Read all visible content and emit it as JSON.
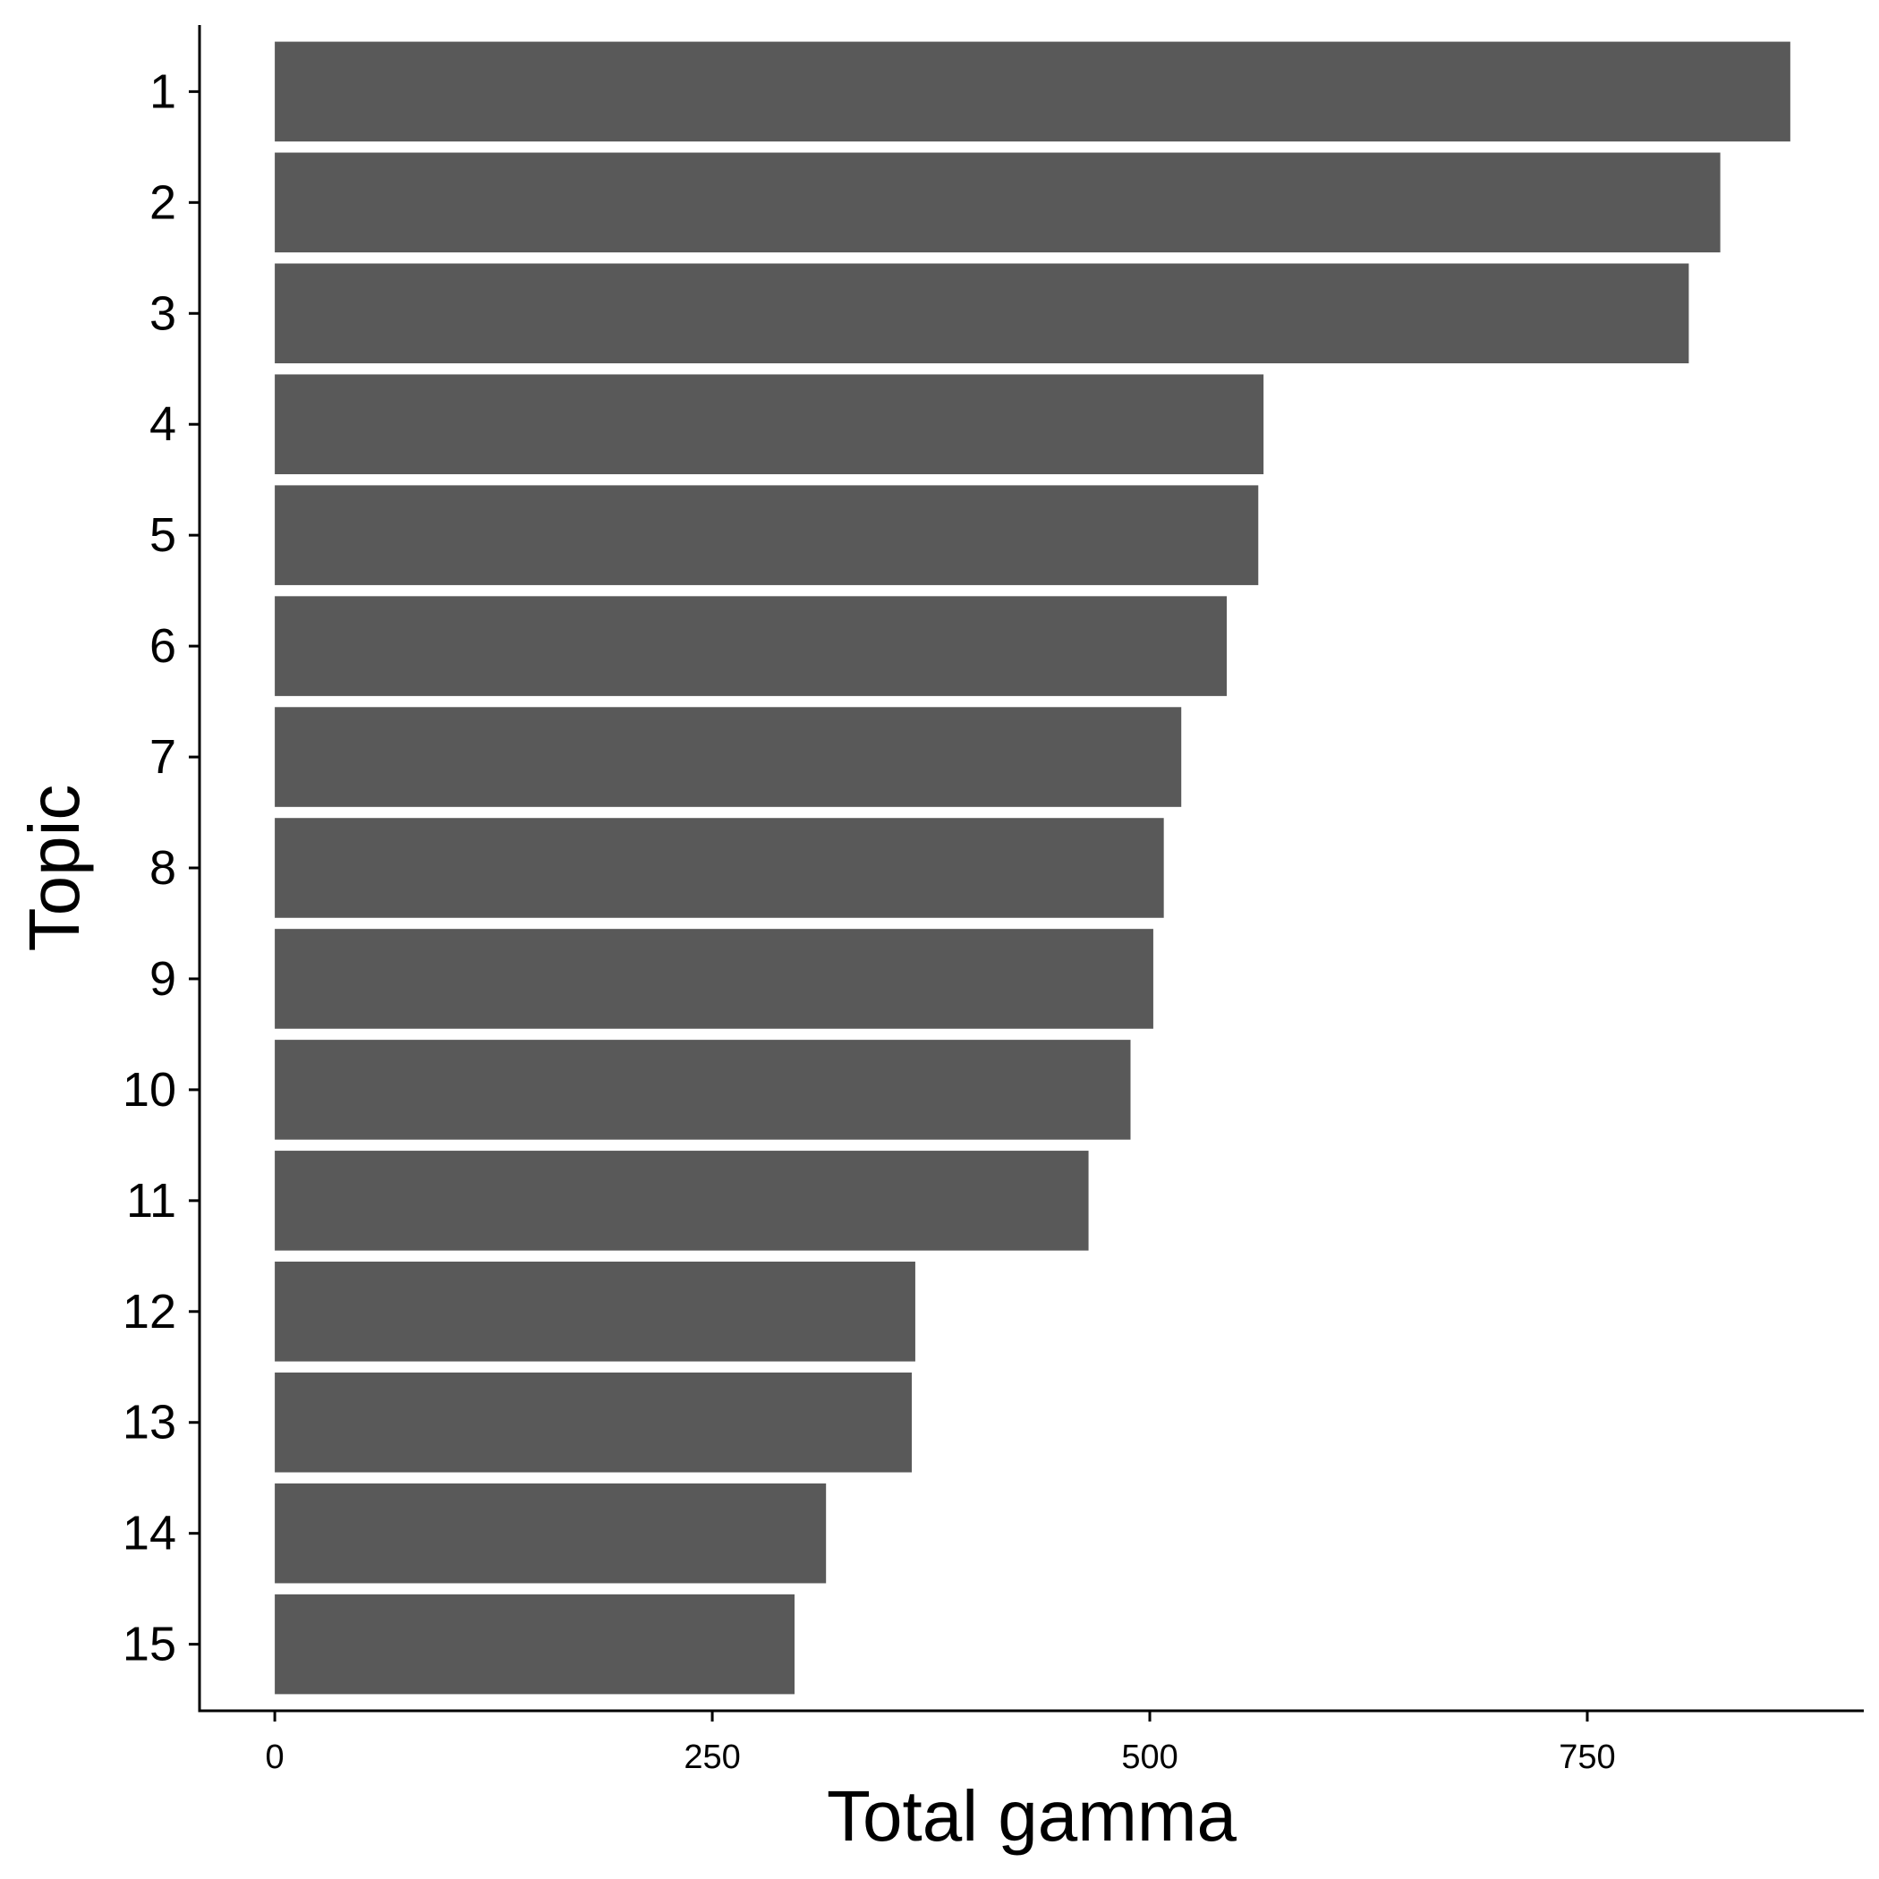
{
  "chart_data": {
    "type": "bar",
    "orientation": "horizontal",
    "categories": [
      "1",
      "2",
      "3",
      "4",
      "5",
      "6",
      "7",
      "8",
      "9",
      "10",
      "11",
      "12",
      "13",
      "14",
      "15"
    ],
    "values": [
      866,
      826,
      808,
      565,
      562,
      544,
      518,
      508,
      502,
      489,
      465,
      366,
      364,
      315,
      297
    ],
    "xlabel": "Total gamma",
    "ylabel": "Topic",
    "xlim": [
      -43,
      908
    ],
    "x_ticks": [
      0,
      250,
      500,
      750
    ],
    "x_tick_labels": [
      "0",
      "250",
      "500",
      "750"
    ],
    "grid": false,
    "legend": "none",
    "colors": {
      "bar": "#595959",
      "axis": "#000000",
      "background": "#ffffff"
    }
  }
}
